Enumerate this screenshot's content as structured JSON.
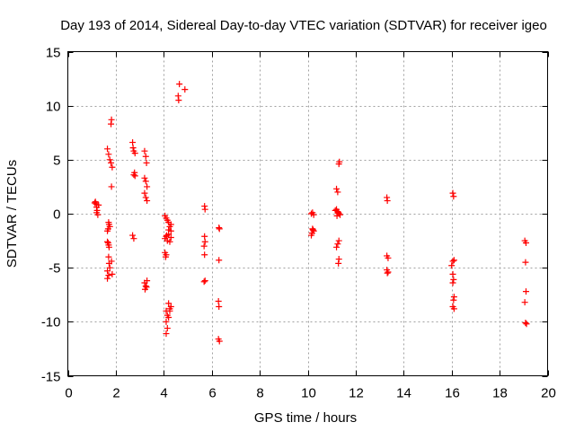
{
  "chart_data": {
    "type": "scatter",
    "title": "Day 193 of 2014, Sidereal Day-to-day VTEC variation (SDTVAR) for receiver igeo",
    "xlabel": "GPS time / hours",
    "ylabel": "SDTVAR / TECUs",
    "xlim": [
      0,
      20
    ],
    "ylim": [
      -15,
      15
    ],
    "xticks": [
      0,
      2,
      4,
      6,
      8,
      10,
      12,
      14,
      16,
      18,
      20
    ],
    "yticks": [
      -15,
      -10,
      -5,
      0,
      5,
      10,
      15
    ],
    "grid": true,
    "marker": "+",
    "color": "#ff0000",
    "series": [
      {
        "name": "SDTVAR",
        "points": [
          [
            1.15,
            1.1
          ],
          [
            1.18,
            0.9
          ],
          [
            1.2,
            0.6
          ],
          [
            1.22,
            0.3
          ],
          [
            1.2,
            0.1
          ],
          [
            1.25,
            -0.1
          ],
          [
            1.12,
            1.0
          ],
          [
            1.28,
            0.8
          ],
          [
            1.65,
            6.0
          ],
          [
            1.7,
            5.5
          ],
          [
            1.75,
            5.0
          ],
          [
            1.8,
            4.7
          ],
          [
            1.85,
            4.3
          ],
          [
            1.82,
            2.5
          ],
          [
            1.82,
            8.7
          ],
          [
            1.8,
            8.3
          ],
          [
            1.7,
            -0.8
          ],
          [
            1.72,
            -1.0
          ],
          [
            1.75,
            -1.2
          ],
          [
            1.68,
            -1.4
          ],
          [
            1.65,
            -1.6
          ],
          [
            1.65,
            -2.6
          ],
          [
            1.7,
            -2.9
          ],
          [
            1.72,
            -3.1
          ],
          [
            1.68,
            -2.7
          ],
          [
            1.7,
            -4.0
          ],
          [
            1.72,
            -4.6
          ],
          [
            1.75,
            -5.0
          ],
          [
            1.65,
            -5.3
          ],
          [
            1.7,
            -5.7
          ],
          [
            1.65,
            -6.0
          ],
          [
            1.82,
            -4.4
          ],
          [
            1.85,
            -5.6
          ],
          [
            2.7,
            6.6
          ],
          [
            2.72,
            6.1
          ],
          [
            2.75,
            5.8
          ],
          [
            2.8,
            5.6
          ],
          [
            2.75,
            3.6
          ],
          [
            2.78,
            3.8
          ],
          [
            2.8,
            3.5
          ],
          [
            2.7,
            -2.0
          ],
          [
            2.75,
            -2.3
          ],
          [
            3.2,
            5.8
          ],
          [
            3.25,
            5.3
          ],
          [
            3.28,
            4.7
          ],
          [
            3.2,
            3.3
          ],
          [
            3.25,
            3.0
          ],
          [
            3.3,
            2.5
          ],
          [
            3.2,
            1.9
          ],
          [
            3.25,
            1.5
          ],
          [
            3.3,
            1.2
          ],
          [
            3.2,
            -6.4
          ],
          [
            3.25,
            -6.7
          ],
          [
            3.22,
            -7.0
          ],
          [
            3.3,
            -6.2
          ],
          [
            3.28,
            -6.8
          ],
          [
            4.05,
            -0.2
          ],
          [
            4.1,
            -0.4
          ],
          [
            4.15,
            -0.6
          ],
          [
            4.2,
            -0.8
          ],
          [
            4.25,
            -1.2
          ],
          [
            4.3,
            -1.6
          ],
          [
            4.2,
            -1.9
          ],
          [
            4.1,
            -2.1
          ],
          [
            4.05,
            -2.3
          ],
          [
            4.15,
            -2.5
          ],
          [
            4.25,
            -2.6
          ],
          [
            4.3,
            -2.2
          ],
          [
            4.2,
            -1.5
          ],
          [
            4.3,
            -1.0
          ],
          [
            4.12,
            -2.0
          ],
          [
            4.05,
            -3.6
          ],
          [
            4.08,
            -4.0
          ],
          [
            4.1,
            -3.8
          ],
          [
            4.1,
            -9.0
          ],
          [
            4.15,
            -9.4
          ],
          [
            4.2,
            -9.6
          ],
          [
            4.25,
            -9.0
          ],
          [
            4.3,
            -8.6
          ],
          [
            4.2,
            -8.3
          ],
          [
            4.1,
            -10.0
          ],
          [
            4.15,
            -10.6
          ],
          [
            4.1,
            -11.1
          ],
          [
            4.25,
            -8.8
          ],
          [
            4.65,
            12.0
          ],
          [
            4.6,
            10.9
          ],
          [
            4.62,
            10.5
          ],
          [
            4.88,
            11.5
          ],
          [
            5.7,
            0.7
          ],
          [
            5.72,
            0.4
          ],
          [
            5.7,
            -2.1
          ],
          [
            5.72,
            -2.6
          ],
          [
            5.68,
            -3.0
          ],
          [
            5.7,
            -3.8
          ],
          [
            5.72,
            -6.2
          ],
          [
            5.68,
            -6.3
          ],
          [
            6.3,
            -1.3
          ],
          [
            6.32,
            -1.4
          ],
          [
            6.3,
            -4.3
          ],
          [
            6.28,
            -8.1
          ],
          [
            6.3,
            -8.6
          ],
          [
            6.28,
            -11.6
          ],
          [
            6.32,
            -11.8
          ],
          [
            10.15,
            0.0
          ],
          [
            10.2,
            0.1
          ],
          [
            10.25,
            -0.1
          ],
          [
            10.2,
            -1.4
          ],
          [
            10.25,
            -1.6
          ],
          [
            10.18,
            -1.8
          ],
          [
            10.15,
            -2.0
          ],
          [
            10.22,
            -1.5
          ],
          [
            11.2,
            2.3
          ],
          [
            11.25,
            2.0
          ],
          [
            11.3,
            4.6
          ],
          [
            11.32,
            4.8
          ],
          [
            11.2,
            0.4
          ],
          [
            11.25,
            0.2
          ],
          [
            11.3,
            0.0
          ],
          [
            11.22,
            -0.2
          ],
          [
            11.28,
            0.1
          ],
          [
            11.35,
            -0.1
          ],
          [
            11.15,
            0.3
          ],
          [
            11.3,
            -2.5
          ],
          [
            11.25,
            -2.8
          ],
          [
            11.2,
            -3.1
          ],
          [
            11.3,
            -4.2
          ],
          [
            11.28,
            -4.6
          ],
          [
            13.3,
            1.5
          ],
          [
            13.32,
            1.2
          ],
          [
            13.3,
            -3.9
          ],
          [
            13.35,
            -4.1
          ],
          [
            13.3,
            -5.2
          ],
          [
            13.35,
            -5.4
          ],
          [
            13.32,
            -5.5
          ],
          [
            16.05,
            1.9
          ],
          [
            16.08,
            1.6
          ],
          [
            16.1,
            -4.3
          ],
          [
            16.05,
            -4.4
          ],
          [
            16.0,
            -4.8
          ],
          [
            16.05,
            -5.6
          ],
          [
            16.08,
            -6.1
          ],
          [
            16.05,
            -6.4
          ],
          [
            16.1,
            -7.7
          ],
          [
            16.08,
            -8.0
          ],
          [
            16.05,
            -8.6
          ],
          [
            16.1,
            -8.8
          ],
          [
            19.05,
            -2.5
          ],
          [
            19.1,
            -2.7
          ],
          [
            19.08,
            -4.5
          ],
          [
            19.1,
            -7.2
          ],
          [
            19.05,
            -8.2
          ],
          [
            19.08,
            -10.1
          ],
          [
            19.12,
            -10.2
          ]
        ]
      }
    ]
  }
}
